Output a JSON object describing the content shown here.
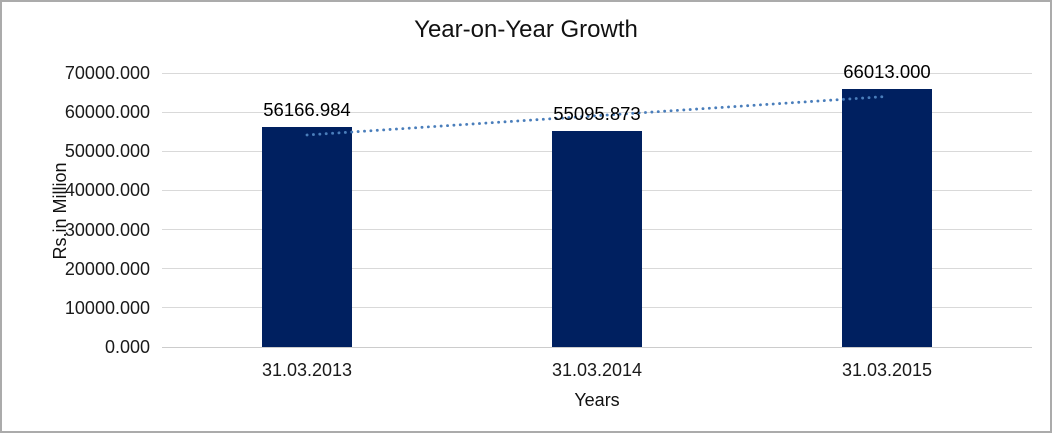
{
  "chart_data": {
    "type": "bar",
    "title": "Year-on-Year Growth",
    "xlabel": "Years",
    "ylabel": "Rs.in Million",
    "categories": [
      "31.03.2013",
      "31.03.2014",
      "31.03.2015"
    ],
    "values": [
      56166.984,
      55095.873,
      66013.0
    ],
    "data_labels": [
      "56166.984",
      "55095.873",
      "66013.000"
    ],
    "ylim": [
      0,
      70000
    ],
    "ytick_step": 10000,
    "ytick_labels": [
      "0.000",
      "10000.000",
      "20000.000",
      "30000.000",
      "40000.000",
      "50000.000",
      "60000.000",
      "70000.000"
    ],
    "grid": true,
    "legend": "none",
    "trendline": {
      "type": "linear",
      "line_style": "round-dot"
    }
  },
  "colors": {
    "bar": "#002060",
    "trendline": "#4a7ebb",
    "gridline": "#d9d9d9",
    "axis_line": "#cccccc",
    "text": "#1a1a1a",
    "frame_border": "#ababab",
    "background": "#ffffff"
  }
}
